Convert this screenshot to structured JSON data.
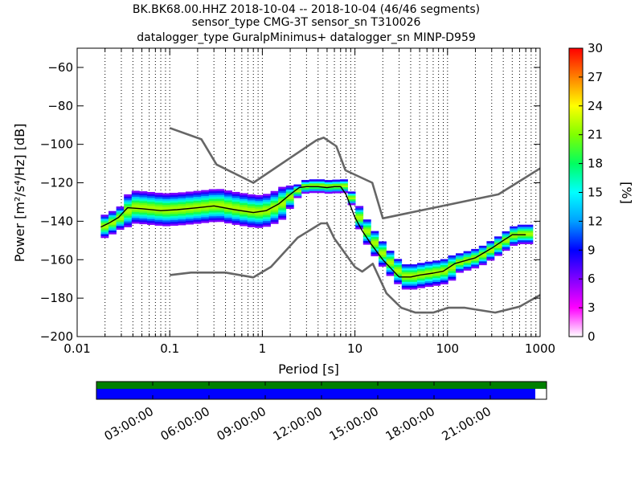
{
  "chart_data": {
    "type": "heatmap",
    "title_lines": [
      "BK.BK68.00.HHZ   2018-10-04 -- 2018-10-04  (46/46 segments)",
      "sensor_type CMG-3T sensor_sn T310026",
      "datalogger_type GuralpMinimus+ datalogger_sn MINP-D959"
    ],
    "xlabel": "Period [s]",
    "ylabel": "Power [m²/s⁴/Hz] [dB]",
    "xscale": "log",
    "xlim": [
      0.01,
      1000
    ],
    "ylim": [
      -200,
      -50
    ],
    "xticks": [
      0.01,
      0.1,
      1,
      10,
      100,
      1000
    ],
    "xtick_labels": [
      "0.01",
      "0.1",
      "1",
      "10",
      "100",
      "1000"
    ],
    "yticks": [
      -200,
      -180,
      -160,
      -140,
      -120,
      -100,
      -80,
      -60
    ],
    "ytick_labels": [
      "−200",
      "−180",
      "−160",
      "−140",
      "−120",
      "−100",
      "−80",
      "−60"
    ],
    "grid": "dotted vertical",
    "colorbar": {
      "label": "[%]",
      "range": [
        0,
        30
      ],
      "ticks": [
        0,
        3,
        6,
        9,
        12,
        15,
        18,
        21,
        24,
        27,
        30
      ],
      "colors": [
        "#ffffff",
        "#ff00ff",
        "#8000ff",
        "#0000ff",
        "#00a0ff",
        "#00ffff",
        "#00ff60",
        "#80ff00",
        "#ffff00",
        "#ff8000",
        "#ff0000"
      ]
    },
    "nhnm": {
      "name": "New High Noise Model",
      "period": [
        0.1,
        0.22,
        0.32,
        0.8,
        3.8,
        4.6,
        6.3,
        7.9,
        15.4,
        20,
        354.8,
        1000
      ],
      "power": [
        -91.5,
        -97.4,
        -110.5,
        -120,
        -98,
        -96.5,
        -101,
        -113.5,
        -120,
        -138.5,
        -126,
        -112.5
      ]
    },
    "nlnm": {
      "name": "New Low Noise Model",
      "period": [
        0.1,
        0.17,
        0.4,
        0.8,
        1.24,
        2.4,
        4.3,
        5,
        6,
        10,
        12,
        15.6,
        21.9,
        31.6,
        45,
        70,
        101,
        154,
        328,
        600,
        1000
      ],
      "power": [
        -168,
        -166.7,
        -166.7,
        -169.2,
        -163.7,
        -148.6,
        -141.1,
        -141.1,
        -149,
        -163.8,
        -166.2,
        -162.1,
        -177.5,
        -185,
        -187.5,
        -187.5,
        -185,
        -185,
        -187.5,
        -184.4,
        -178.4
      ]
    },
    "psd_mean": {
      "name": "mean PSD",
      "period": [
        0.018,
        0.022,
        0.028,
        0.035,
        0.05,
        0.08,
        0.12,
        0.2,
        0.3,
        0.5,
        0.8,
        1.1,
        1.5,
        2,
        2.5,
        3,
        4,
        5,
        6,
        7,
        8,
        10,
        12,
        15,
        20,
        25,
        30,
        40,
        50,
        70,
        90,
        120,
        200,
        300,
        400,
        500,
        700
      ],
      "power": [
        -143,
        -141,
        -138,
        -133,
        -133.5,
        -134.5,
        -134,
        -133,
        -132,
        -134,
        -135.5,
        -134.5,
        -131,
        -126,
        -122.5,
        -122,
        -122,
        -122.5,
        -122,
        -122,
        -126,
        -138,
        -145,
        -152,
        -160,
        -165,
        -169,
        -169,
        -168,
        -167,
        -166,
        -162,
        -159,
        -154,
        -150,
        -147,
        -147
      ]
    },
    "coverage": {
      "ticks": [
        "03:00:00",
        "06:00:00",
        "09:00:00",
        "12:00:00",
        "15:00:00",
        "18:00:00",
        "21:00:00"
      ],
      "data_fraction": 0.975,
      "colors": {
        "data": "#0000ff",
        "gaps": "#ffffff",
        "segments": "#007f00"
      }
    }
  }
}
